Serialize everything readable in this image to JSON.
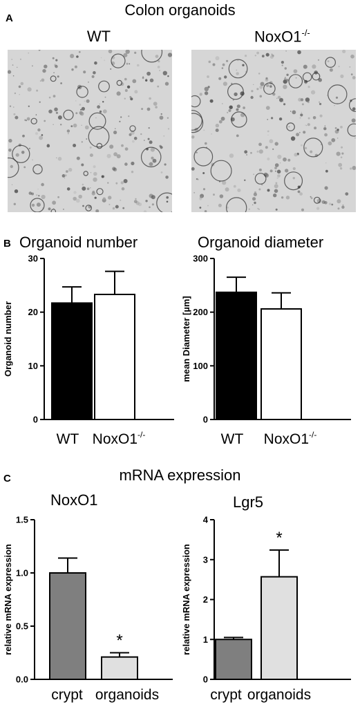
{
  "panel_a": {
    "letter": "A",
    "title": "Colon organoids",
    "left_label": "WT",
    "right_label_base": "NoxO1",
    "right_label_sup": "-/-",
    "left_image": "brightfield-micrograph-wt",
    "right_image": "brightfield-micrograph-noxo1-ko"
  },
  "panel_b": {
    "letter": "B"
  },
  "panel_c": {
    "letter": "C",
    "title": "mRNA expression"
  },
  "colors": {
    "black_bar": "#000000",
    "white_bar": "#ffffff",
    "dark_grey_bar": "#7f7f7f",
    "light_grey_bar": "#e0e0e0"
  },
  "chart_data": [
    {
      "type": "bar",
      "title": "Organoid number",
      "ylabel": "Organoid number",
      "ylim": [
        0,
        30
      ],
      "yticks": [
        0,
        10,
        20,
        30
      ],
      "categories": [
        "WT",
        "NoxO1"
      ],
      "category_sups": [
        "",
        "-/-"
      ],
      "values": [
        21.7,
        23.3
      ],
      "errors": [
        3.0,
        4.3
      ],
      "fills": [
        "#000000",
        "#ffffff"
      ],
      "significance": [
        "",
        ""
      ]
    },
    {
      "type": "bar",
      "title": "Organoid diameter",
      "ylabel": "mean Diameter [µm]",
      "ylim": [
        0,
        300
      ],
      "yticks": [
        0,
        100,
        200,
        300
      ],
      "categories": [
        "WT",
        "NoxO1"
      ],
      "category_sups": [
        "",
        "-/-"
      ],
      "values": [
        237,
        206
      ],
      "errors": [
        28,
        30
      ],
      "fills": [
        "#000000",
        "#ffffff"
      ],
      "significance": [
        "",
        ""
      ]
    },
    {
      "type": "bar",
      "title": "NoxO1",
      "ylabel": "relative mRNA expression",
      "ylim": [
        0,
        1.5
      ],
      "yticks": [
        "0.0",
        "0.5",
        "1.0",
        "1.5"
      ],
      "categories": [
        "crypt",
        "organoids"
      ],
      "category_sups": [
        "",
        ""
      ],
      "values": [
        1.0,
        0.21
      ],
      "errors": [
        0.14,
        0.04
      ],
      "fills": [
        "#7f7f7f",
        "#e0e0e0"
      ],
      "significance": [
        "",
        "*"
      ]
    },
    {
      "type": "bar",
      "title": "Lgr5",
      "ylabel": "relative mRNA expression",
      "ylim": [
        0,
        4
      ],
      "yticks": [
        0,
        1,
        2,
        3,
        4
      ],
      "categories": [
        "crypt",
        "organoids"
      ],
      "category_sups": [
        "",
        ""
      ],
      "values": [
        1.0,
        2.57
      ],
      "errors": [
        0.05,
        0.67
      ],
      "fills": [
        "#7f7f7f",
        "#e0e0e0"
      ],
      "significance": [
        "",
        "*"
      ]
    }
  ]
}
